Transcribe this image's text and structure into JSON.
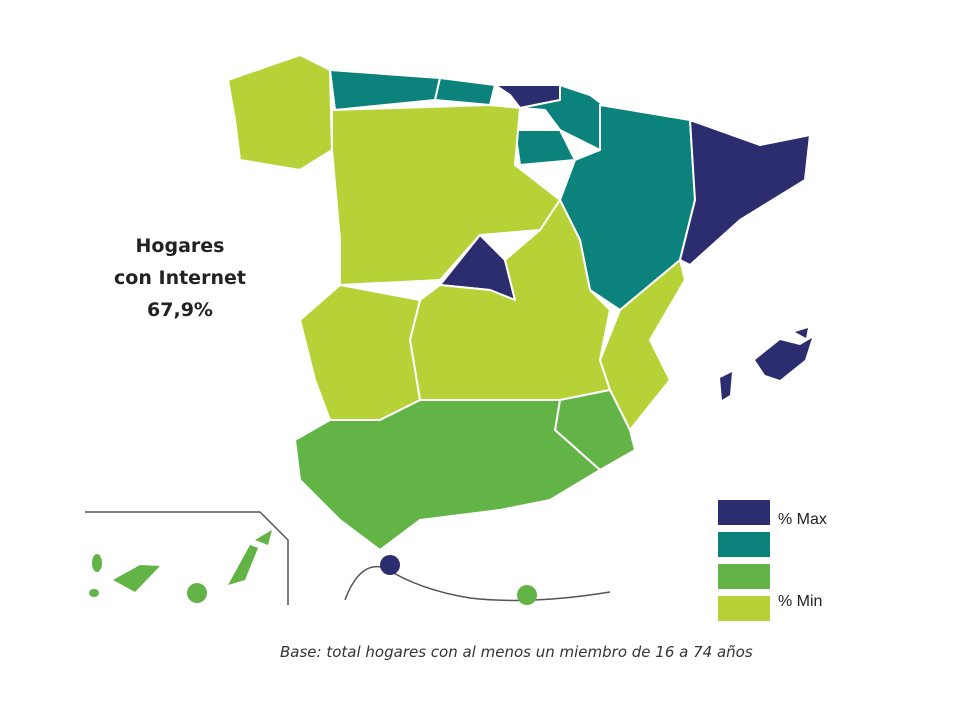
{
  "title": {
    "lines": [
      "Hogares",
      "con Internet",
      "67,9%"
    ]
  },
  "legend": {
    "items": [
      {
        "label": "% Max",
        "color": "#2b2d6e"
      },
      {
        "color": "#0b827c"
      },
      {
        "color": "#62b446"
      },
      {
        "label": "% Min",
        "color": "#b6d236"
      }
    ]
  },
  "footnote": "Base: total hogares con al menos un miembro de 16 a 74 años"
}
